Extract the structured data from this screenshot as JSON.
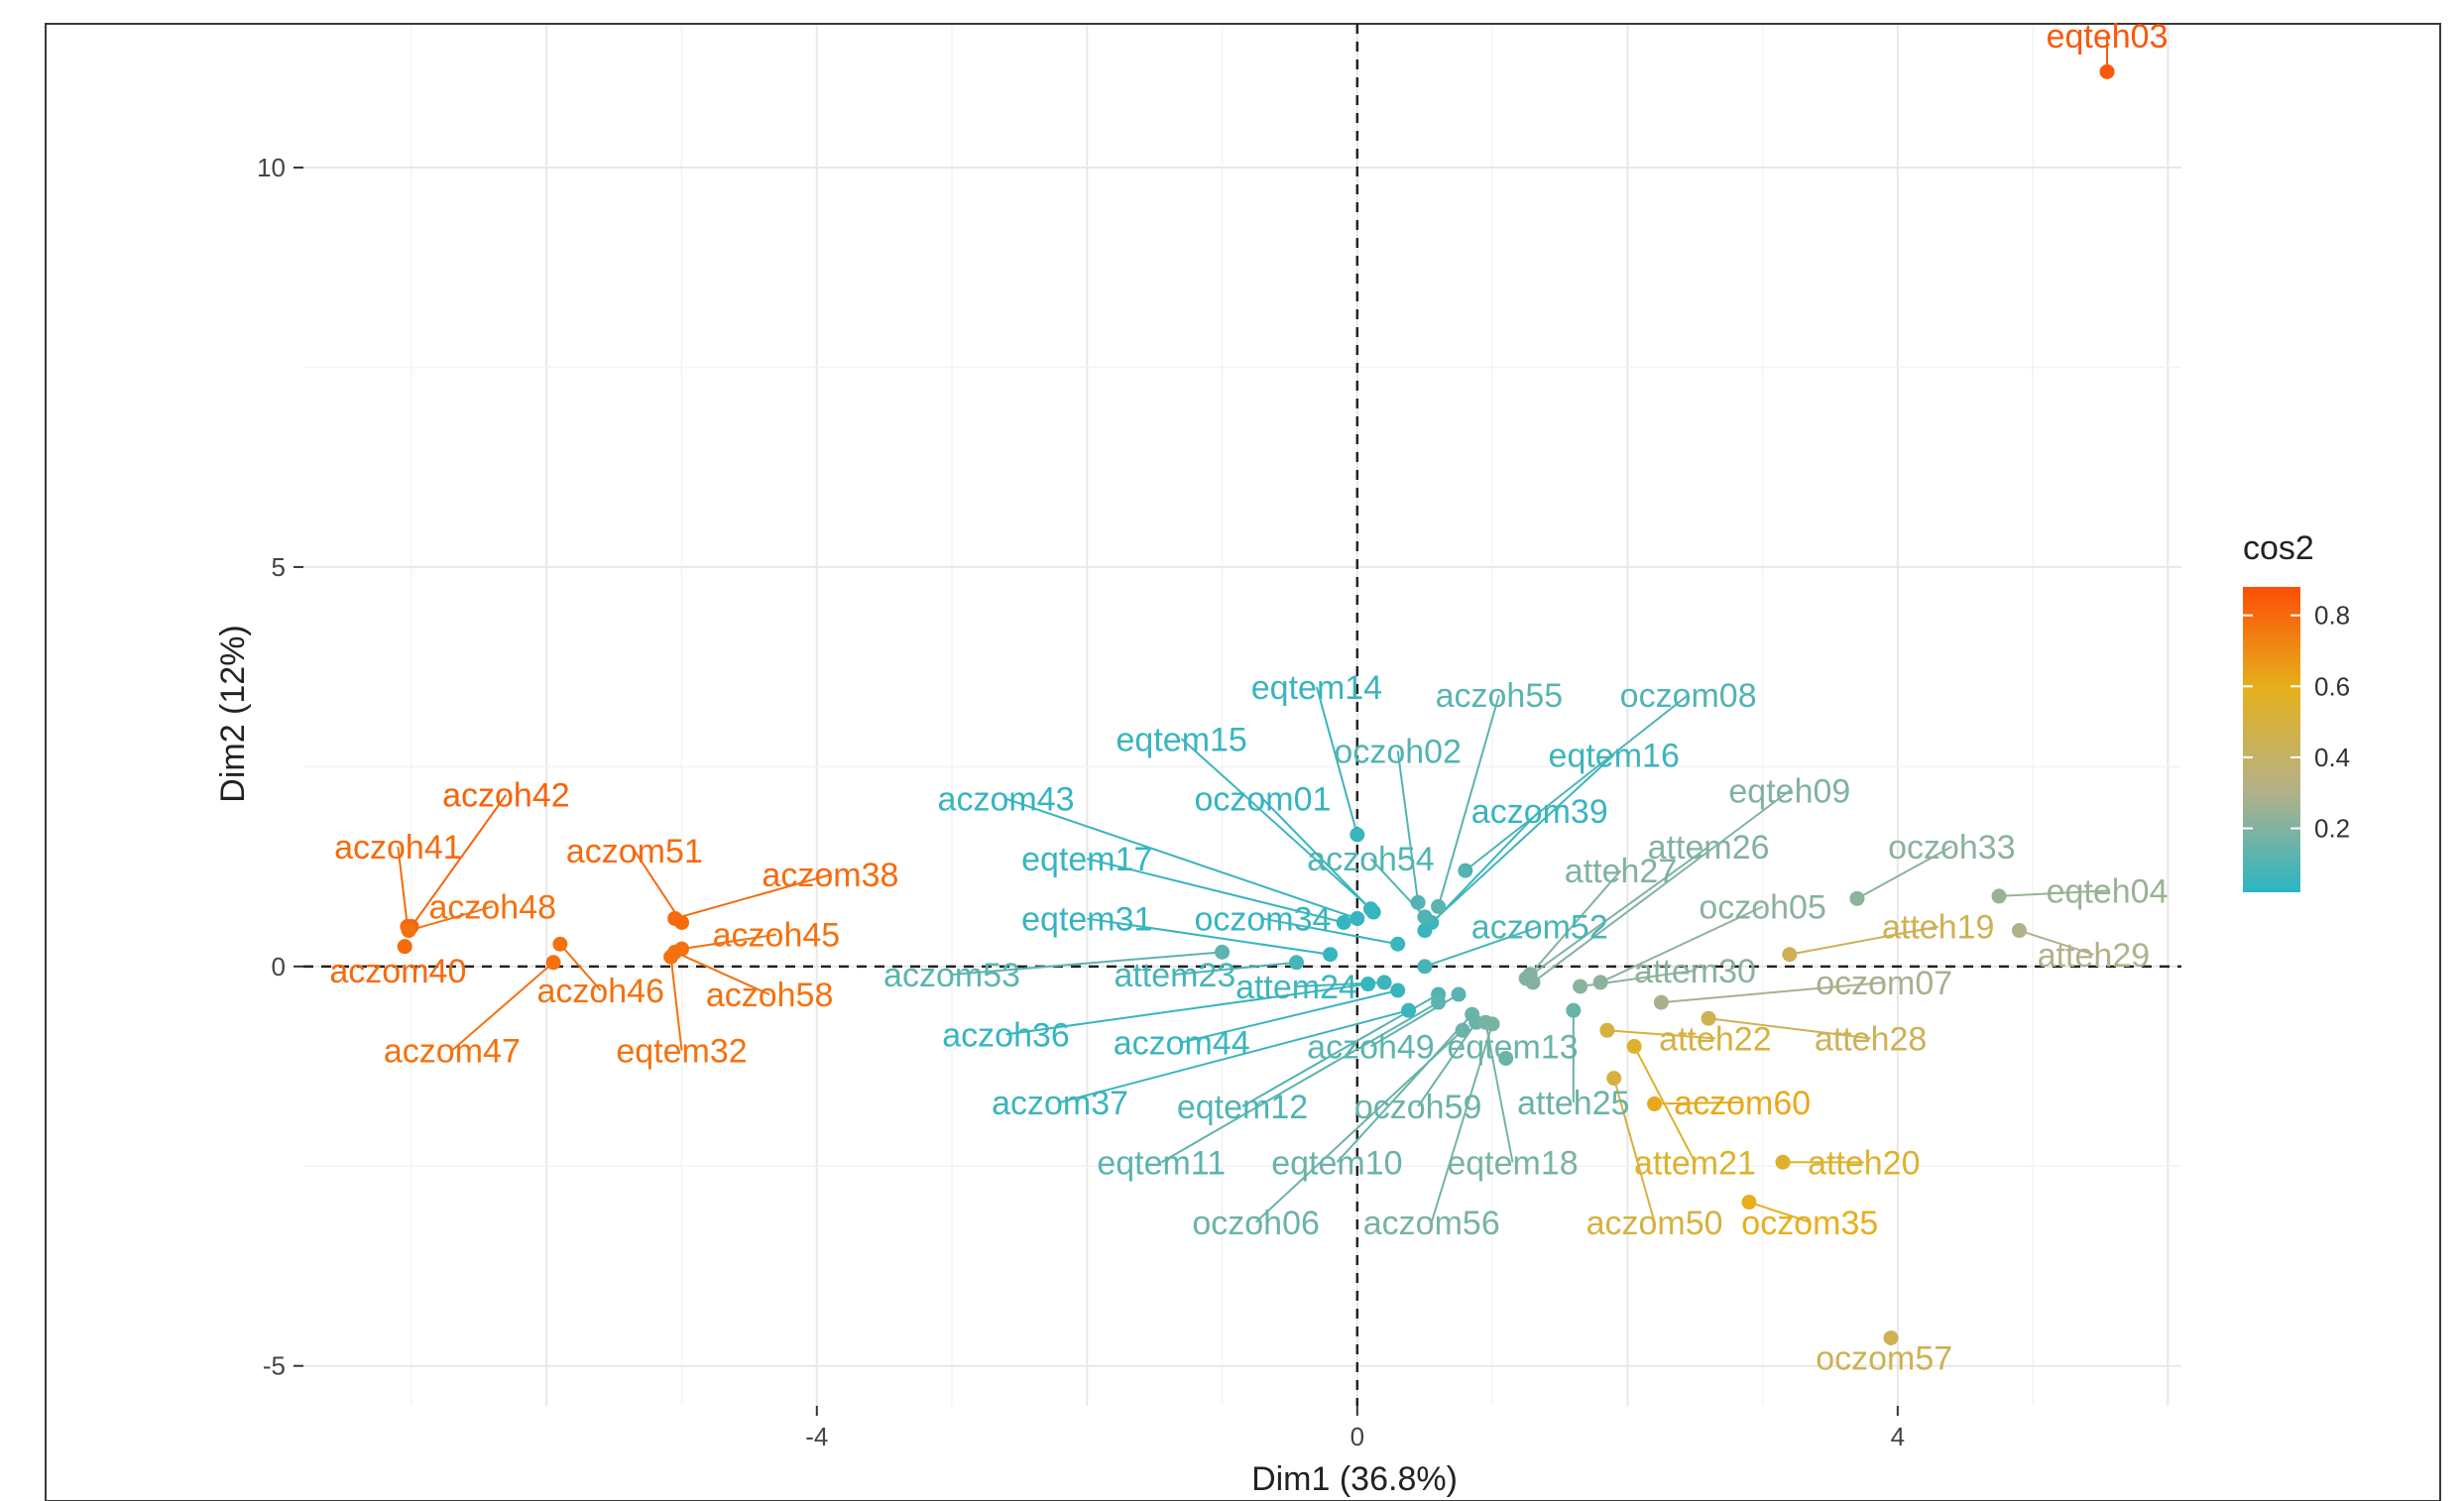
{
  "chart_data": {
    "type": "scatter",
    "title": "",
    "xlabel": "Dim1 (36.8%)",
    "ylabel": "Dim2 (12%)",
    "xlim": [
      -7.8,
      6.1
    ],
    "ylim": [
      -5.5,
      11.8
    ],
    "x_ticks": [
      -4,
      0,
      4
    ],
    "y_ticks": [
      -5,
      0,
      5,
      10
    ],
    "reference_lines": {
      "x": 0,
      "y": 0,
      "style": "dashed"
    },
    "grid": true,
    "legend": {
      "title": "cos2",
      "position": "right",
      "ticks": [
        0.2,
        0.4,
        0.6,
        0.8
      ],
      "range": [
        0.02,
        0.88
      ],
      "colors": [
        "#2bb5c3",
        "#b4b189",
        "#e5b11c",
        "#fc4e07"
      ]
    },
    "points": [
      {
        "label": "eqteh03",
        "x": 5.55,
        "y": 11.2,
        "cos2": 0.85
      },
      {
        "label": "aczoh42",
        "x": -7.0,
        "y": 0.5,
        "cos2": 0.82
      },
      {
        "label": "aczoh41",
        "x": -7.03,
        "y": 0.5,
        "cos2": 0.8
      },
      {
        "label": "aczoh48",
        "x": -7.02,
        "y": 0.45,
        "cos2": 0.78
      },
      {
        "label": "aczom40",
        "x": -7.05,
        "y": 0.25,
        "cos2": 0.8
      },
      {
        "label": "aczom47",
        "x": -5.95,
        "y": 0.05,
        "cos2": 0.78
      },
      {
        "label": "aczoh46",
        "x": -5.9,
        "y": 0.28,
        "cos2": 0.78
      },
      {
        "label": "aczom51",
        "x": -5.0,
        "y": 0.55,
        "cos2": 0.8
      },
      {
        "label": "aczom38",
        "x": -5.05,
        "y": 0.6,
        "cos2": 0.8
      },
      {
        "label": "aczoh45",
        "x": -5.0,
        "y": 0.22,
        "cos2": 0.78
      },
      {
        "label": "aczoh58",
        "x": -5.05,
        "y": 0.18,
        "cos2": 0.78
      },
      {
        "label": "eqtem32",
        "x": -5.08,
        "y": 0.12,
        "cos2": 0.78
      },
      {
        "label": "eqtem14",
        "x": 0.0,
        "y": 1.65,
        "cos2": 0.05
      },
      {
        "label": "aczoh55",
        "x": 0.6,
        "y": 0.75,
        "cos2": 0.12
      },
      {
        "label": "oczom08",
        "x": 0.8,
        "y": 1.2,
        "cos2": 0.1
      },
      {
        "label": "eqtem15",
        "x": 0.1,
        "y": 0.72,
        "cos2": 0.05
      },
      {
        "label": "oczoh02",
        "x": 0.45,
        "y": 0.8,
        "cos2": 0.1
      },
      {
        "label": "eqtem16",
        "x": 0.55,
        "y": 0.55,
        "cos2": 0.06
      },
      {
        "label": "aczom43",
        "x": 0.0,
        "y": 0.6,
        "cos2": 0.04
      },
      {
        "label": "oczom01",
        "x": 0.12,
        "y": 0.68,
        "cos2": 0.04
      },
      {
        "label": "aczom39",
        "x": 0.5,
        "y": 0.45,
        "cos2": 0.05
      },
      {
        "label": "aczoh54",
        "x": 0.5,
        "y": 0.62,
        "cos2": 0.1
      },
      {
        "label": "eqtem17",
        "x": -0.1,
        "y": 0.55,
        "cos2": 0.04
      },
      {
        "label": "eqtem31",
        "x": -0.2,
        "y": 0.15,
        "cos2": 0.04
      },
      {
        "label": "oczom34",
        "x": 0.3,
        "y": 0.28,
        "cos2": 0.05
      },
      {
        "label": "aczom52",
        "x": 0.5,
        "y": 0.0,
        "cos2": 0.08
      },
      {
        "label": "aczom53",
        "x": -1.0,
        "y": 0.18,
        "cos2": 0.12
      },
      {
        "label": "attem23",
        "x": -0.45,
        "y": 0.05,
        "cos2": 0.08
      },
      {
        "label": "attem24",
        "x": 0.2,
        "y": -0.2,
        "cos2": 0.06
      },
      {
        "label": "aczoh36",
        "x": 0.08,
        "y": -0.22,
        "cos2": 0.04
      },
      {
        "label": "aczom44",
        "x": 0.3,
        "y": -0.3,
        "cos2": 0.05
      },
      {
        "label": "aczom37",
        "x": 0.38,
        "y": -0.55,
        "cos2": 0.05
      },
      {
        "label": "eqtem12",
        "x": 0.6,
        "y": -0.35,
        "cos2": 0.1
      },
      {
        "label": "aczoh49",
        "x": 0.75,
        "y": -0.35,
        "cos2": 0.12
      },
      {
        "label": "eqtem13",
        "x": 1.1,
        "y": -1.15,
        "cos2": 0.15
      },
      {
        "label": "oczoh59",
        "x": 0.88,
        "y": -0.7,
        "cos2": 0.15
      },
      {
        "label": "atteh25",
        "x": 1.6,
        "y": -0.55,
        "cos2": 0.15
      },
      {
        "label": "eqtem11",
        "x": 0.6,
        "y": -0.45,
        "cos2": 0.12
      },
      {
        "label": "eqtem10",
        "x": 0.85,
        "y": -0.6,
        "cos2": 0.15
      },
      {
        "label": "eqtem18",
        "x": 0.95,
        "y": -0.7,
        "cos2": 0.18
      },
      {
        "label": "oczoh06",
        "x": 0.78,
        "y": -0.8,
        "cos2": 0.15
      },
      {
        "label": "aczom56",
        "x": 1.0,
        "y": -0.72,
        "cos2": 0.18
      },
      {
        "label": "eqteh09",
        "x": 1.3,
        "y": -0.2,
        "cos2": 0.2
      },
      {
        "label": "attem26",
        "x": 1.25,
        "y": -0.15,
        "cos2": 0.2
      },
      {
        "label": "oczoh33",
        "x": 3.7,
        "y": 0.85,
        "cos2": 0.22
      },
      {
        "label": "atteh27",
        "x": 1.28,
        "y": -0.1,
        "cos2": 0.2
      },
      {
        "label": "eqteh04",
        "x": 4.75,
        "y": 0.88,
        "cos2": 0.25
      },
      {
        "label": "oczoh05",
        "x": 1.8,
        "y": -0.2,
        "cos2": 0.22
      },
      {
        "label": "atteh19",
        "x": 3.2,
        "y": 0.15,
        "cos2": 0.45
      },
      {
        "label": "atteh29",
        "x": 4.9,
        "y": 0.45,
        "cos2": 0.3
      },
      {
        "label": "attem30",
        "x": 1.65,
        "y": -0.25,
        "cos2": 0.22
      },
      {
        "label": "oczom07",
        "x": 2.25,
        "y": -0.45,
        "cos2": 0.28
      },
      {
        "label": "atteh22",
        "x": 1.85,
        "y": -0.8,
        "cos2": 0.5
      },
      {
        "label": "atteh28",
        "x": 2.6,
        "y": -0.65,
        "cos2": 0.45
      },
      {
        "label": "aczom60",
        "x": 2.2,
        "y": -1.72,
        "cos2": 0.62
      },
      {
        "label": "attem21",
        "x": 2.05,
        "y": -1.0,
        "cos2": 0.55
      },
      {
        "label": "atteh20",
        "x": 3.15,
        "y": -2.45,
        "cos2": 0.55
      },
      {
        "label": "aczom50",
        "x": 1.9,
        "y": -1.4,
        "cos2": 0.5
      },
      {
        "label": "oczom35",
        "x": 2.9,
        "y": -2.95,
        "cos2": 0.6
      },
      {
        "label": "oczom57",
        "x": 3.95,
        "y": -4.65,
        "cos2": 0.45
      }
    ],
    "labels": [
      {
        "label": "eqteh03",
        "x": 5.55,
        "y": 11.5
      },
      {
        "label": "aczoh42",
        "x": -6.3,
        "y": 2.0
      },
      {
        "label": "aczoh41",
        "x": -7.1,
        "y": 1.35
      },
      {
        "label": "aczoh48",
        "x": -6.4,
        "y": 0.6
      },
      {
        "label": "aczom40",
        "x": -7.1,
        "y": -0.2
      },
      {
        "label": "aczom47",
        "x": -6.7,
        "y": -1.2
      },
      {
        "label": "aczoh46",
        "x": -5.6,
        "y": -0.45
      },
      {
        "label": "aczom51",
        "x": -5.35,
        "y": 1.3
      },
      {
        "label": "aczom38",
        "x": -3.9,
        "y": 1.0
      },
      {
        "label": "aczoh45",
        "x": -4.3,
        "y": 0.25
      },
      {
        "label": "aczoh58",
        "x": -4.35,
        "y": -0.5
      },
      {
        "label": "eqtem32",
        "x": -5.0,
        "y": -1.2
      },
      {
        "label": "eqtem14",
        "x": -0.3,
        "y": 3.35
      },
      {
        "label": "aczoh55",
        "x": 1.05,
        "y": 3.25
      },
      {
        "label": "oczom08",
        "x": 2.45,
        "y": 3.25
      },
      {
        "label": "eqtem15",
        "x": -1.3,
        "y": 2.7
      },
      {
        "label": "oczoh02",
        "x": 0.3,
        "y": 2.55
      },
      {
        "label": "eqtem16",
        "x": 1.9,
        "y": 2.5
      },
      {
        "label": "aczom43",
        "x": -2.6,
        "y": 1.95
      },
      {
        "label": "oczom01",
        "x": -0.7,
        "y": 1.95
      },
      {
        "label": "aczom39",
        "x": 1.35,
        "y": 1.8
      },
      {
        "label": "aczoh54",
        "x": 0.1,
        "y": 1.2
      },
      {
        "label": "eqtem17",
        "x": -2.0,
        "y": 1.2
      },
      {
        "label": "eqtem31",
        "x": -2.0,
        "y": 0.45
      },
      {
        "label": "oczom34",
        "x": -0.7,
        "y": 0.45
      },
      {
        "label": "aczom52",
        "x": 1.35,
        "y": 0.35
      },
      {
        "label": "aczom53",
        "x": -3.0,
        "y": -0.25
      },
      {
        "label": "attem23",
        "x": -1.35,
        "y": -0.25
      },
      {
        "label": "attem24",
        "x": -0.45,
        "y": -0.4
      },
      {
        "label": "aczoh36",
        "x": -2.6,
        "y": -1.0
      },
      {
        "label": "aczom44",
        "x": -1.3,
        "y": -1.1
      },
      {
        "label": "aczom37",
        "x": -2.2,
        "y": -1.85
      },
      {
        "label": "eqtem12",
        "x": -0.85,
        "y": -1.9
      },
      {
        "label": "aczoh49",
        "x": 0.1,
        "y": -1.15
      },
      {
        "label": "eqtem13",
        "x": 1.15,
        "y": -1.15
      },
      {
        "label": "oczoh59",
        "x": 0.45,
        "y": -1.9
      },
      {
        "label": "atteh25",
        "x": 1.6,
        "y": -1.85
      },
      {
        "label": "eqtem11",
        "x": -1.45,
        "y": -2.6
      },
      {
        "label": "eqtem10",
        "x": -0.15,
        "y": -2.6
      },
      {
        "label": "eqtem18",
        "x": 1.15,
        "y": -2.6
      },
      {
        "label": "oczoh06",
        "x": -0.75,
        "y": -3.35
      },
      {
        "label": "aczom56",
        "x": 0.55,
        "y": -3.35
      },
      {
        "label": "eqteh09",
        "x": 3.2,
        "y": 2.05
      },
      {
        "label": "attem26",
        "x": 2.6,
        "y": 1.35
      },
      {
        "label": "oczoh33",
        "x": 4.4,
        "y": 1.35
      },
      {
        "label": "atteh27",
        "x": 1.95,
        "y": 1.05
      },
      {
        "label": "eqteh04",
        "x": 5.55,
        "y": 0.8
      },
      {
        "label": "oczoh05",
        "x": 3.0,
        "y": 0.6
      },
      {
        "label": "atteh19",
        "x": 4.3,
        "y": 0.35
      },
      {
        "label": "atteh29",
        "x": 5.45,
        "y": 0.0
      },
      {
        "label": "attem30",
        "x": 2.5,
        "y": -0.2
      },
      {
        "label": "oczom07",
        "x": 3.9,
        "y": -0.35
      },
      {
        "label": "atteh22",
        "x": 2.65,
        "y": -1.05
      },
      {
        "label": "atteh28",
        "x": 3.8,
        "y": -1.05
      },
      {
        "label": "aczom60",
        "x": 2.85,
        "y": -1.85
      },
      {
        "label": "attem21",
        "x": 2.5,
        "y": -2.6
      },
      {
        "label": "atteh20",
        "x": 3.75,
        "y": -2.6
      },
      {
        "label": "aczom50",
        "x": 2.2,
        "y": -3.35
      },
      {
        "label": "oczom35",
        "x": 3.35,
        "y": -3.35
      },
      {
        "label": "oczom57",
        "x": 3.9,
        "y": -5.05
      }
    ]
  }
}
